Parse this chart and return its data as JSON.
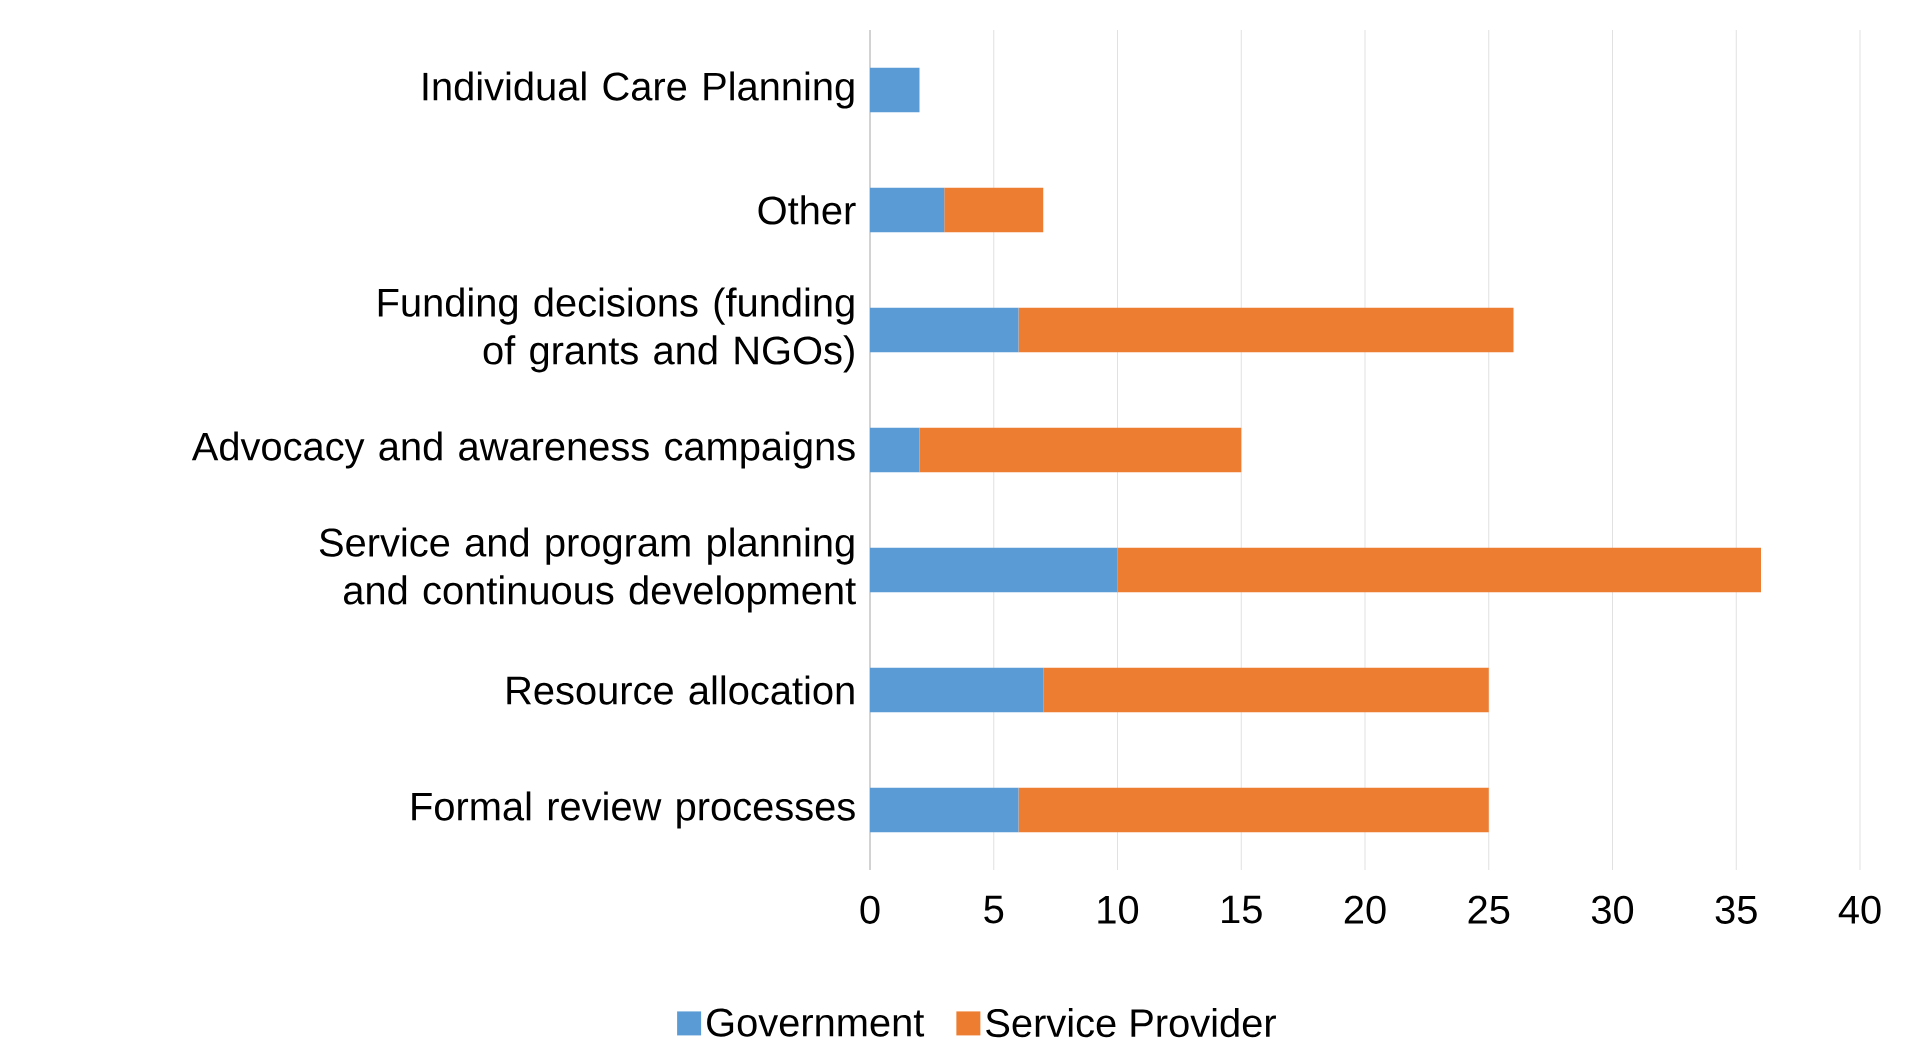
{
  "chart_data": {
    "type": "bar",
    "orientation": "horizontal",
    "stacked": true,
    "categories": [
      "Individual Care Planning",
      "Other",
      "Funding decisions (funding of grants and NGOs)",
      "Advocacy and awareness campaigns",
      "Service and program planning and continuous development",
      "Resource allocation",
      "Formal review processes"
    ],
    "series": [
      {
        "name": "Government",
        "color": "#5b9bd5",
        "values": [
          2,
          3,
          6,
          2,
          10,
          7,
          6
        ]
      },
      {
        "name": "Service Provider",
        "color": "#ed7d31",
        "values": [
          0,
          4,
          20,
          13,
          26,
          18,
          19
        ]
      }
    ],
    "xlim": [
      0,
      40
    ],
    "xticks": [
      0,
      5,
      10,
      15,
      20,
      25,
      30,
      35,
      40
    ],
    "grid": "x",
    "legend": "bottom"
  }
}
